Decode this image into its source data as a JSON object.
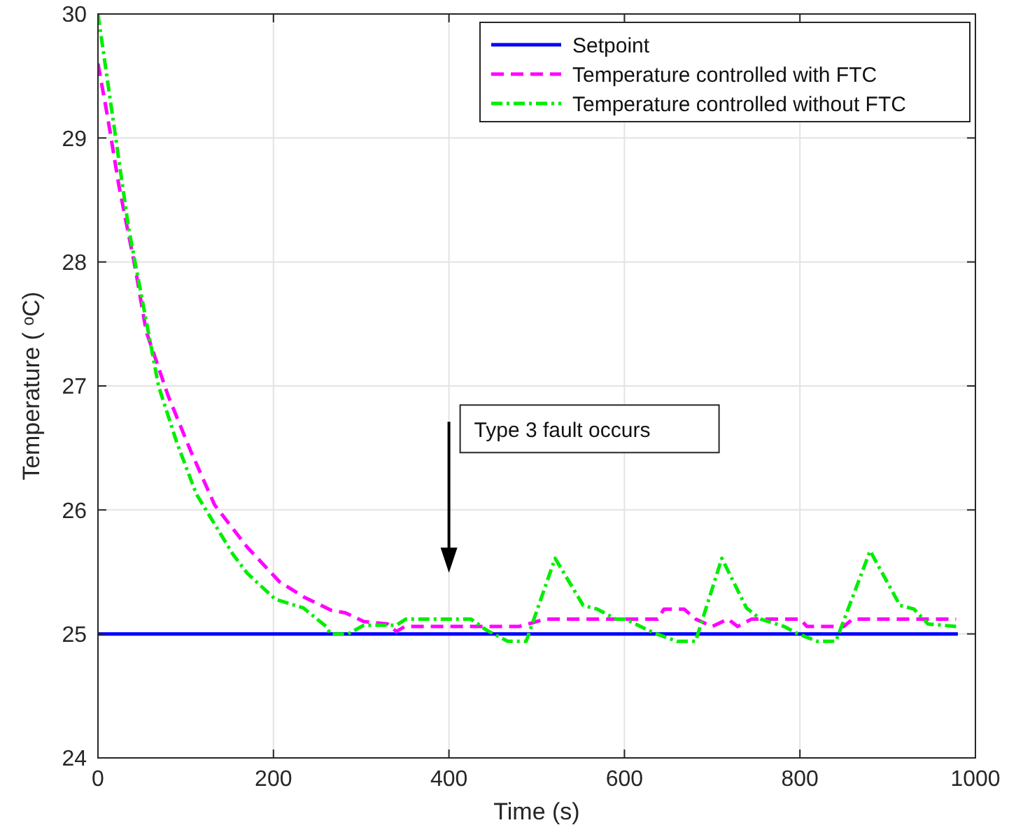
{
  "chart_data": {
    "type": "line",
    "xlabel": "Time (s)",
    "ylabel": "Temperature ( ᵒC)",
    "xlim": [
      0,
      1000
    ],
    "ylim": [
      24,
      30
    ],
    "xticks": [
      0,
      200,
      400,
      600,
      800,
      1000
    ],
    "yticks": [
      24,
      25,
      26,
      27,
      28,
      29,
      30
    ],
    "grid": true,
    "legend": "top right",
    "series": [
      {
        "name": "Setpoint",
        "color": "#0000ff",
        "line_style": "solid",
        "x": [
          0,
          980
        ],
        "values": [
          25,
          25
        ]
      },
      {
        "name": "Temperature controlled with FTC",
        "color": "#ff00ff",
        "line_style": "dashed",
        "x": [
          0,
          11,
          24,
          42,
          55,
          80,
          106,
          133,
          170,
          207,
          234,
          266,
          282,
          303,
          330,
          340,
          350,
          480,
          510,
          638,
          645,
          668,
          681,
          700,
          718,
          729,
          745,
          800,
          808,
          850,
          860,
          978
        ],
        "values": [
          29.6,
          29.17,
          28.61,
          27.97,
          27.44,
          26.92,
          26.47,
          26.04,
          25.7,
          25.42,
          25.3,
          25.19,
          25.17,
          25.1,
          25.08,
          25.02,
          25.06,
          25.06,
          25.12,
          25.12,
          25.2,
          25.2,
          25.12,
          25.06,
          25.12,
          25.06,
          25.12,
          25.12,
          25.06,
          25.06,
          25.12,
          25.12
        ]
      },
      {
        "name": "Temperature controlled without FTC",
        "color": "#00ee00",
        "line_style": "dotted",
        "x": [
          0,
          35,
          53,
          69,
          90,
          112,
          154,
          170,
          202,
          234,
          260,
          265,
          285,
          303,
          340,
          351,
          425,
          443,
          467,
          488,
          521,
          553,
          569,
          590,
          601,
          633,
          660,
          681,
          711,
          739,
          755,
          782,
          798,
          820,
          841,
          880,
          914,
          930,
          946,
          978
        ],
        "values": [
          30,
          28.27,
          27.6,
          27.0,
          26.54,
          26.13,
          25.64,
          25.49,
          25.28,
          25.21,
          25.06,
          25.0,
          25.0,
          25.07,
          25.07,
          25.12,
          25.12,
          25.03,
          24.94,
          24.94,
          25.61,
          25.23,
          25.2,
          25.12,
          25.12,
          25.01,
          24.94,
          24.94,
          25.61,
          25.21,
          25.12,
          25.06,
          25.0,
          24.94,
          24.94,
          25.67,
          25.23,
          25.2,
          25.08,
          25.06
        ]
      }
    ],
    "annotations": [
      "Type 3 fault occurs"
    ]
  }
}
